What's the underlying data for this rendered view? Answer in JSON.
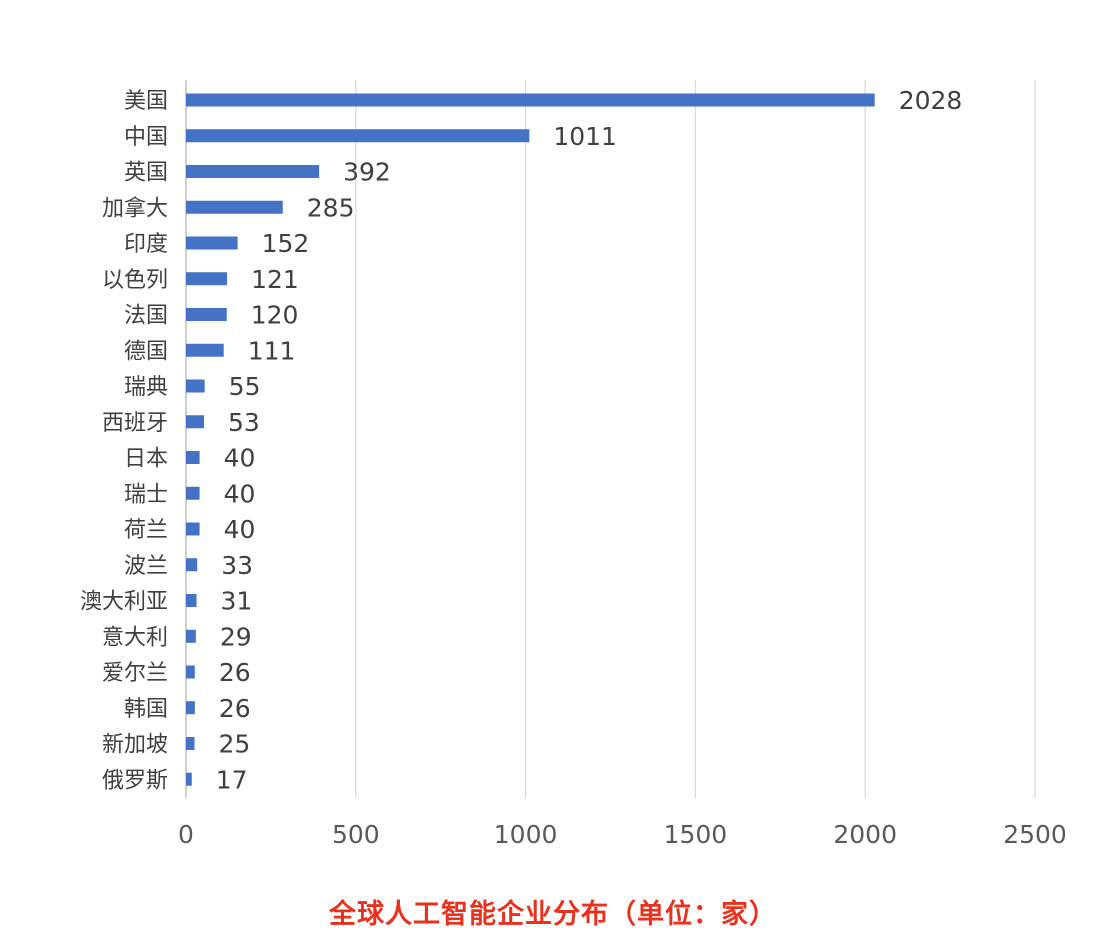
{
  "caption": "全球人工智能企业分布（单位：家）",
  "chart_data": {
    "type": "bar",
    "orientation": "horizontal",
    "categories": [
      "美国",
      "中国",
      "英国",
      "加拿大",
      "印度",
      "以色列",
      "法国",
      "德国",
      "瑞典",
      "西班牙",
      "日本",
      "瑞士",
      "荷兰",
      "波兰",
      "澳大利亚",
      "意大利",
      "爱尔兰",
      "韩国",
      "新加坡",
      "俄罗斯"
    ],
    "values": [
      2028,
      1011,
      392,
      285,
      152,
      121,
      120,
      111,
      55,
      53,
      40,
      40,
      40,
      33,
      31,
      29,
      26,
      26,
      25,
      17
    ],
    "xlim": [
      0,
      2500
    ],
    "xticks": [
      0,
      500,
      1000,
      1500,
      2000,
      2500
    ],
    "grid": true,
    "data_labels": true,
    "bar_color": "#4472c4",
    "title": "",
    "xlabel": "",
    "ylabel": ""
  }
}
